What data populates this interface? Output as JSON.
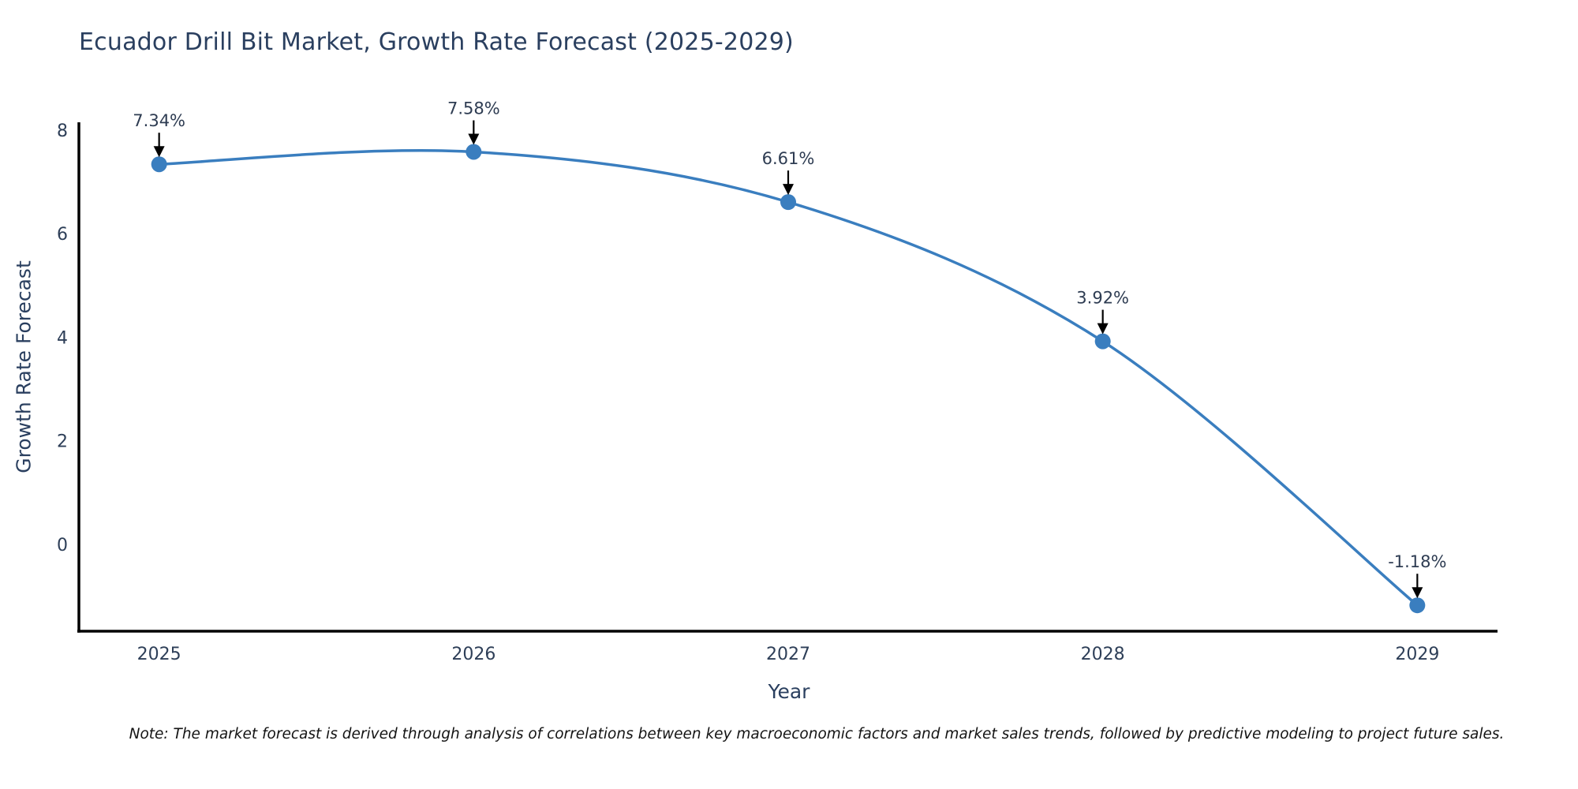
{
  "chart_data": {
    "type": "line",
    "title": "Ecuador Drill Bit Market, Growth Rate Forecast (2025-2029)",
    "xlabel": "Year",
    "ylabel": "Growth Rate Forecast",
    "x": [
      2025,
      2026,
      2027,
      2028,
      2029
    ],
    "values": [
      7.34,
      7.58,
      6.61,
      3.92,
      -1.18
    ],
    "point_labels": [
      "7.34%",
      "7.58%",
      "6.61%",
      "3.92%",
      "-1.18%"
    ],
    "yticks": [
      0,
      2,
      4,
      6,
      8
    ],
    "xlim": [
      2024.745,
      2029.255
    ],
    "ylim": [
      -1.68,
      8.38
    ],
    "grid": false,
    "legend": "none",
    "line_shape": "spline",
    "colors": {
      "line": "#3a7ebf",
      "marker": "#3a7ebf",
      "axis": "#000000",
      "tick_text": "#2e3f58",
      "annotation_text": "#2e3c52"
    }
  },
  "note": "Note: The market forecast is derived through analysis of correlations between key macroeconomic factors and market sales trends, followed by predictive modeling to project future sales."
}
